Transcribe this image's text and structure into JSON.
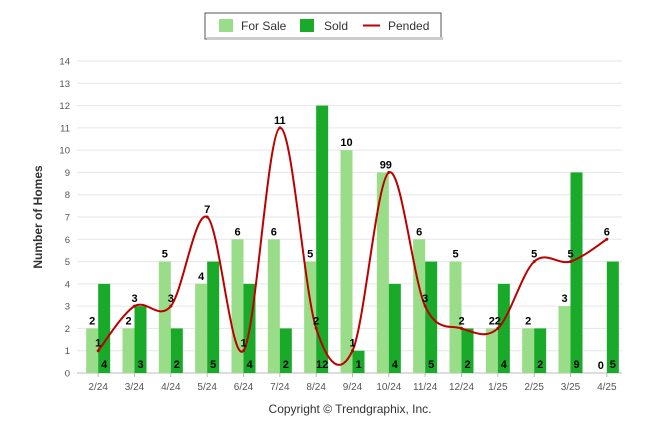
{
  "chart_data": {
    "type": "bar",
    "ylabel": "Number of Homes",
    "xlabel": "",
    "ylim": [
      0,
      14
    ],
    "yticks": [
      0,
      1,
      2,
      3,
      4,
      5,
      6,
      7,
      8,
      9,
      10,
      11,
      12,
      13,
      14
    ],
    "grid": true,
    "legend_position": "top-center",
    "categories": [
      "2/24",
      "3/24",
      "4/24",
      "5/24",
      "6/24",
      "7/24",
      "8/24",
      "9/24",
      "10/24",
      "11/24",
      "12/24",
      "1/25",
      "2/25",
      "3/25",
      "4/25"
    ],
    "series": [
      {
        "name": "For Sale",
        "kind": "bar",
        "color": "#99dd88",
        "values": [
          2,
          2,
          5,
          4,
          6,
          6,
          5,
          10,
          9,
          6,
          5,
          2,
          2,
          3,
          0
        ]
      },
      {
        "name": "Sold",
        "kind": "bar",
        "color": "#1aaa2a",
        "values": [
          4,
          3,
          2,
          5,
          4,
          2,
          12,
          1,
          4,
          5,
          2,
          4,
          2,
          9,
          5
        ]
      },
      {
        "name": "Pended",
        "kind": "line",
        "color": "#bb0000",
        "values": [
          1,
          3,
          3,
          7,
          1,
          11,
          2,
          1,
          9,
          3,
          2,
          2,
          5,
          5,
          6
        ]
      }
    ]
  },
  "legend": {
    "items": [
      {
        "label": "For Sale",
        "color": "#99dd88",
        "symbol": "box"
      },
      {
        "label": "Sold",
        "color": "#1aaa2a",
        "symbol": "box"
      },
      {
        "label": "Pended",
        "color": "#bb0000",
        "symbol": "line"
      }
    ]
  },
  "copyright": "Copyright © Trendgraphix, Inc."
}
